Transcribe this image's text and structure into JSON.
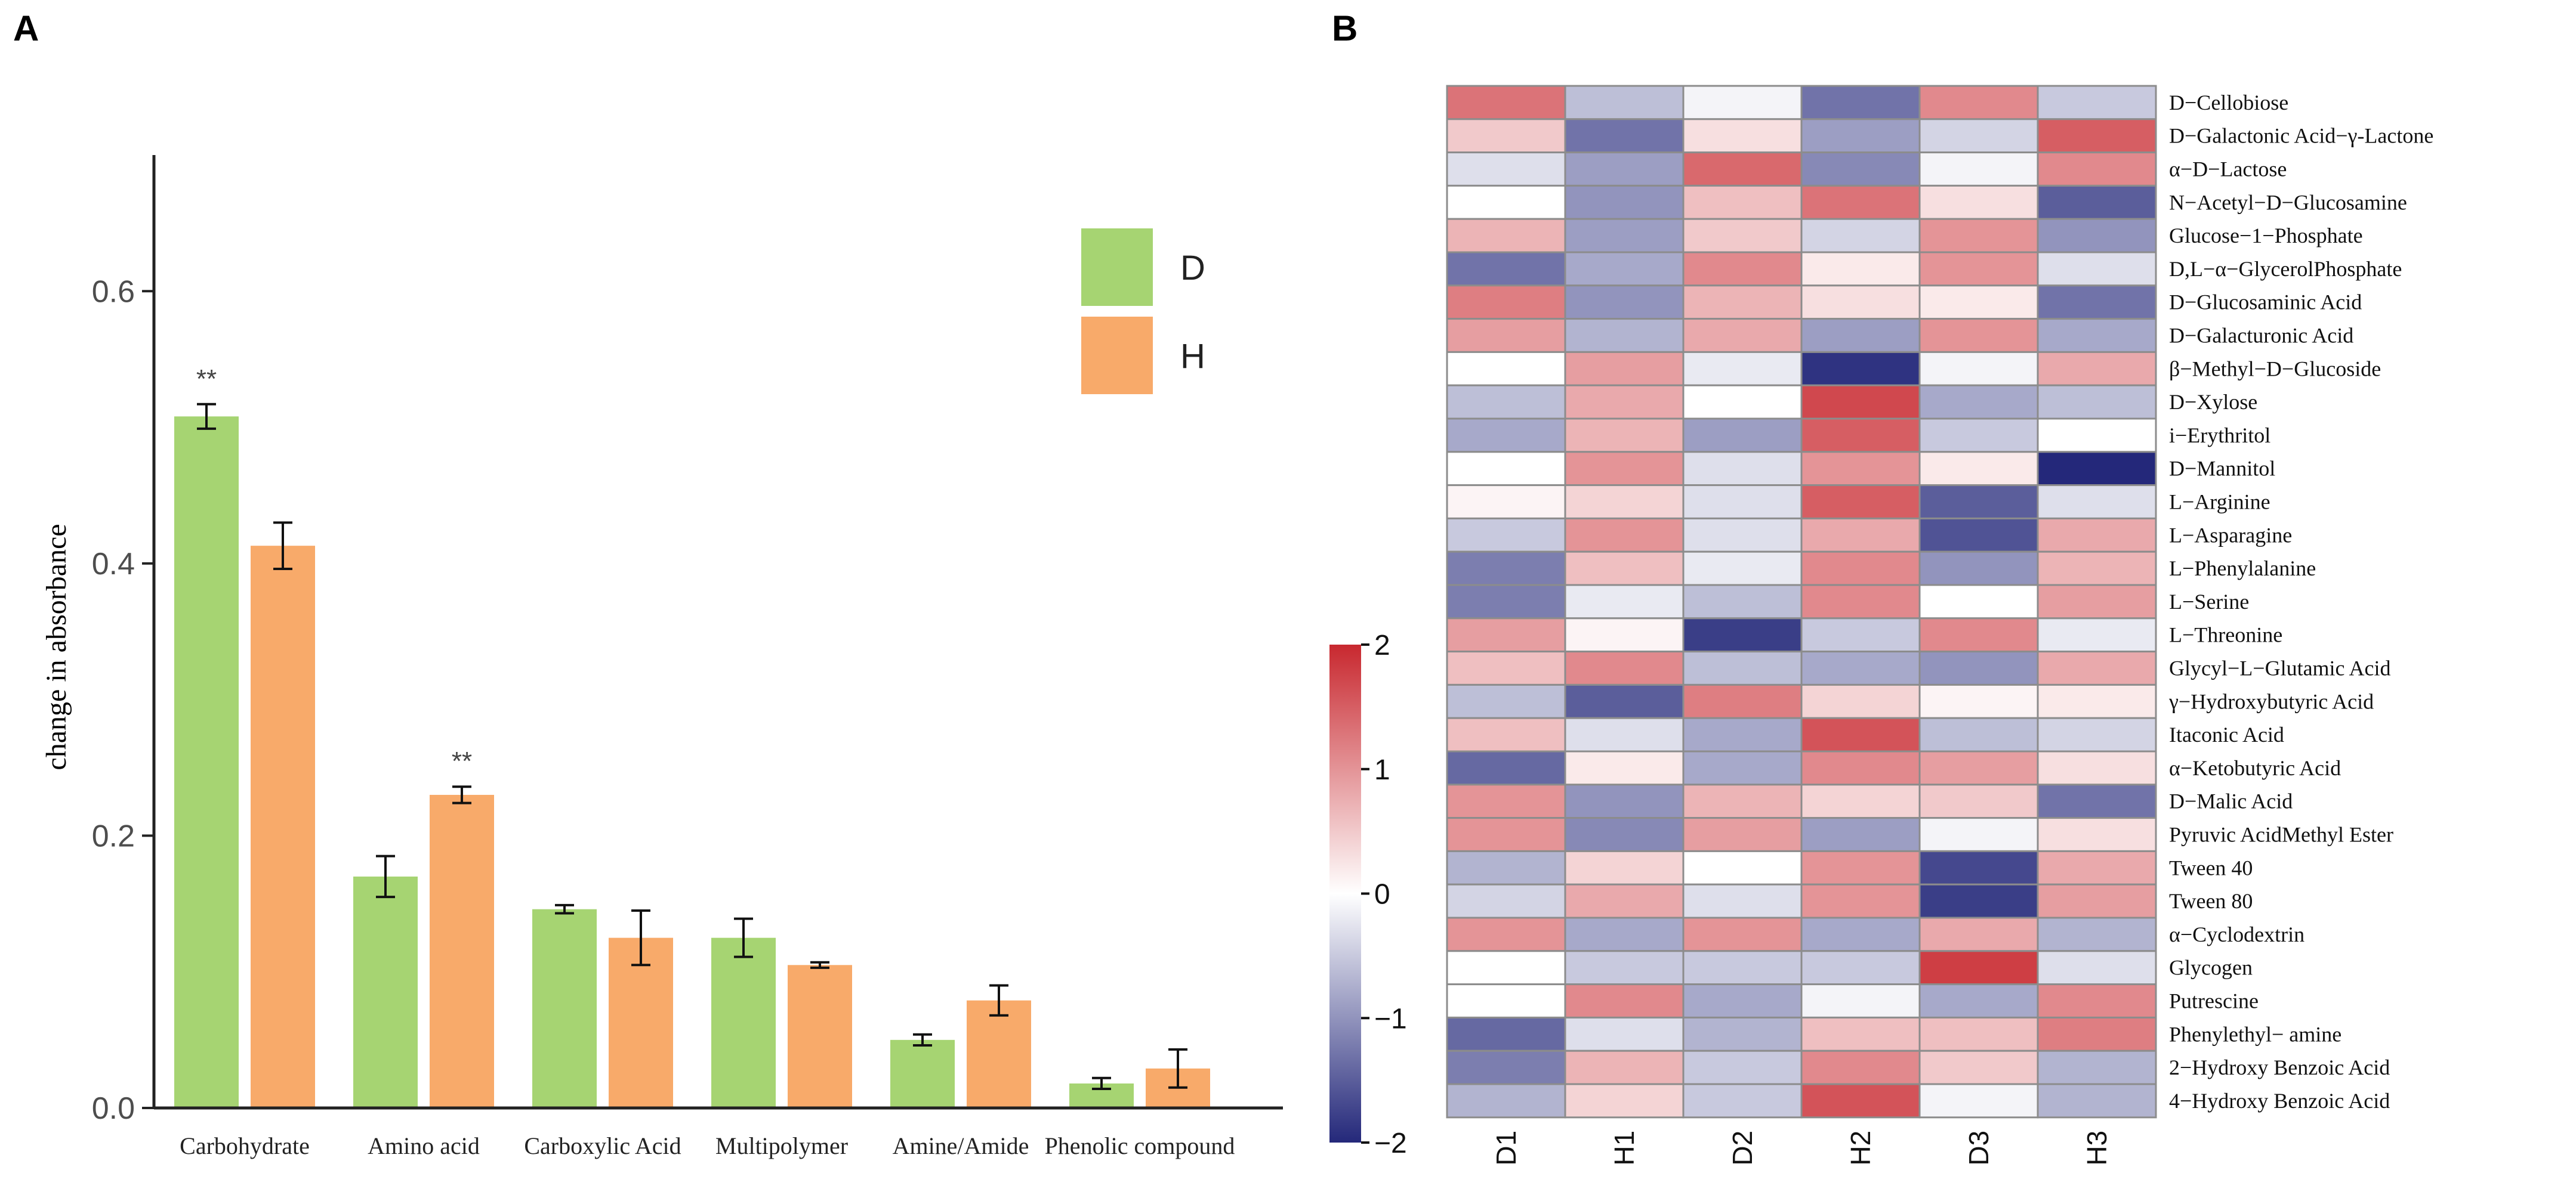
{
  "panels": {
    "a_letter": "A",
    "b_letter": "B"
  },
  "chart_data": [
    {
      "type": "bar",
      "panel": "A",
      "title": "",
      "xlabel": "",
      "ylabel": "change in absorbance",
      "ylim": [
        0,
        0.7
      ],
      "yticks": [
        0.0,
        0.2,
        0.4,
        0.6
      ],
      "ytick_labels": [
        "0.0",
        "0.2",
        "0.4",
        "0.6"
      ],
      "categories": [
        "Carbohydrate",
        "Amino acid",
        "Carboxylic Acid",
        "Multipolymer",
        "Amine/Amide",
        "Phenolic compound"
      ],
      "series": [
        {
          "name": "D",
          "color": "#a6d472",
          "values": [
            0.508,
            0.17,
            0.146,
            0.125,
            0.05,
            0.018
          ],
          "errors": [
            0.009,
            0.015,
            0.003,
            0.014,
            0.004,
            0.004
          ]
        },
        {
          "name": "H",
          "color": "#f8aa6a",
          "values": [
            0.413,
            0.23,
            0.125,
            0.105,
            0.079,
            0.029
          ],
          "errors": [
            0.017,
            0.006,
            0.02,
            0.002,
            0.011,
            0.014
          ]
        }
      ],
      "annotations": [
        {
          "category": "Carbohydrate",
          "series": "D",
          "text": "**"
        },
        {
          "category": "Amino acid",
          "series": "H",
          "text": "**"
        }
      ],
      "legend_position": "top-right",
      "grid": false
    },
    {
      "type": "heatmap",
      "panel": "B",
      "columns": [
        "D1",
        "H1",
        "D2",
        "H2",
        "D3",
        "H3"
      ],
      "rows": [
        "D−Cellobiose",
        "D−Galactonic Acid−γ-Lactone",
        "α−D−Lactose",
        "N−Acetyl−D−Glucosamine",
        "Glucose−1−Phosphate",
        "D,L−α−GlycerolPhosphate",
        "D−Glucosaminic Acid",
        "D−Galacturonic Acid",
        "β−Methyl−D−Glucoside",
        "D−Xylose",
        "i−Erythritol",
        "D−Mannitol",
        "L−Arginine",
        "L−Asparagine",
        "L−Phenylalanine",
        "L−Serine",
        "L−Threonine",
        "Glycyl−L−Glutamic Acid",
        "γ−Hydroxybutyric Acid",
        "Itaconic Acid",
        "α−Ketobutyric Acid",
        "D−Malic Acid",
        "Pyruvic AcidMethyl Ester",
        "Tween 40",
        "Tween 80",
        "α−Cyclodextrin",
        "Glycogen",
        "Putrescine",
        "Phenylethyl− amine",
        "2−Hydroxy Benzoic Acid",
        "4−Hydroxy Benzoic Acid"
      ],
      "values": [
        [
          1.3,
          -0.6,
          -0.1,
          -1.3,
          1.1,
          -0.5
        ],
        [
          0.5,
          -1.3,
          0.3,
          -0.9,
          -0.4,
          1.5
        ],
        [
          -0.3,
          -0.9,
          1.4,
          -1.1,
          -0.1,
          1.1
        ],
        [
          0.0,
          -1.0,
          0.6,
          1.3,
          0.3,
          -1.5
        ],
        [
          0.7,
          -0.9,
          0.5,
          -0.4,
          1.0,
          -1.0
        ],
        [
          -1.3,
          -0.8,
          1.1,
          0.2,
          1.0,
          -0.3
        ],
        [
          1.2,
          -1.0,
          0.7,
          0.3,
          0.2,
          -1.3
        ],
        [
          0.9,
          -0.7,
          0.8,
          -0.9,
          1.0,
          -0.8
        ],
        [
          0.0,
          0.9,
          -0.2,
          -1.9,
          -0.1,
          0.8
        ],
        [
          -0.6,
          0.8,
          0.0,
          1.7,
          -0.8,
          -0.6
        ],
        [
          -0.8,
          0.7,
          -0.9,
          1.5,
          -0.5,
          0.0
        ],
        [
          0.0,
          1.0,
          -0.3,
          1.0,
          0.2,
          -2.0
        ],
        [
          0.1,
          0.4,
          -0.3,
          1.5,
          -1.5,
          -0.3
        ],
        [
          -0.5,
          1.0,
          -0.3,
          0.8,
          -1.6,
          0.8
        ],
        [
          -1.2,
          0.6,
          -0.2,
          1.1,
          -1.0,
          0.7
        ],
        [
          -1.2,
          -0.2,
          -0.6,
          1.1,
          0.0,
          0.9
        ],
        [
          0.9,
          0.1,
          -1.8,
          -0.5,
          1.1,
          -0.2
        ],
        [
          0.6,
          1.1,
          -0.6,
          -0.8,
          -1.0,
          0.8
        ],
        [
          -0.6,
          -1.5,
          1.2,
          0.4,
          0.1,
          0.2
        ],
        [
          0.6,
          -0.3,
          -0.8,
          1.6,
          -0.6,
          -0.4
        ],
        [
          -1.4,
          0.2,
          -0.8,
          1.1,
          0.9,
          0.3
        ],
        [
          1.0,
          -1.0,
          0.7,
          0.4,
          0.5,
          -1.3
        ],
        [
          1.0,
          -1.1,
          0.9,
          -0.9,
          -0.1,
          0.3
        ],
        [
          -0.7,
          0.4,
          0.0,
          1.0,
          -1.7,
          0.8
        ],
        [
          -0.4,
          0.8,
          -0.3,
          1.0,
          -1.8,
          0.9
        ],
        [
          1.0,
          -0.8,
          1.0,
          -0.8,
          0.8,
          -0.7
        ],
        [
          0.0,
          -0.5,
          -0.5,
          -0.5,
          1.8,
          -0.3
        ],
        [
          0.0,
          1.1,
          -0.8,
          -0.1,
          -0.8,
          1.1
        ],
        [
          -1.4,
          -0.3,
          -0.7,
          0.6,
          0.6,
          1.2
        ],
        [
          -1.2,
          0.7,
          -0.5,
          1.1,
          0.5,
          -0.7
        ],
        [
          -0.7,
          0.4,
          -0.5,
          1.6,
          -0.1,
          -0.7
        ]
      ],
      "colorbar": {
        "min": -2,
        "max": 2,
        "ticks": [
          2,
          1,
          0,
          -1,
          -2
        ],
        "tick_labels": [
          "2",
          "1",
          "0",
          "−1",
          "−2"
        ],
        "low_color": "#24287a",
        "mid_color": "#ffffff",
        "high_color": "#c8282f"
      }
    }
  ]
}
